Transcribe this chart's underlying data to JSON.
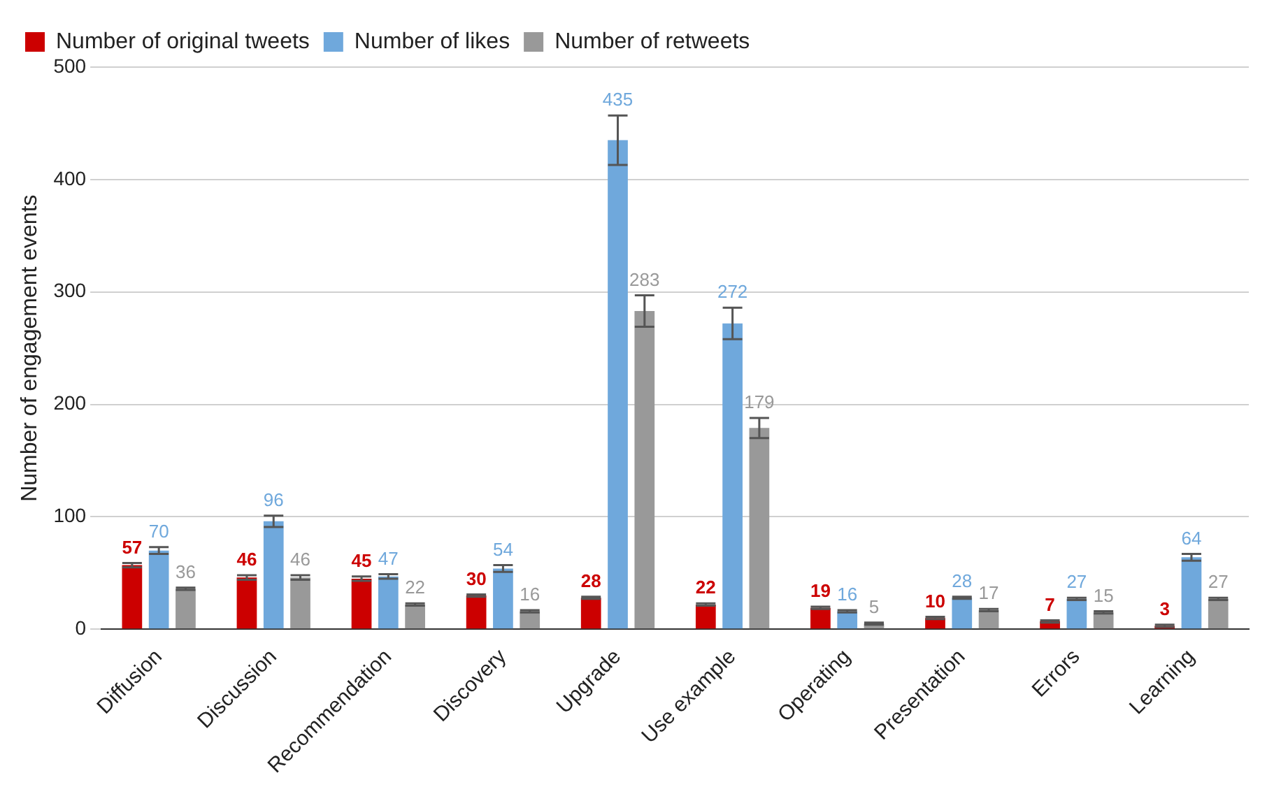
{
  "chart_data": {
    "type": "bar",
    "ylabel": "Number of engagement events",
    "categories": [
      "Diffusion",
      "Discussion",
      "Recommendation",
      "Discovery",
      "Upgrade",
      "Use example",
      "Operating",
      "Presentation",
      "Errors",
      "Learning"
    ],
    "series": [
      {
        "name": "Number of original tweets",
        "color": "#cc0000",
        "values": [
          57,
          46,
          45,
          30,
          28,
          22,
          19,
          10,
          7,
          3
        ],
        "errors": [
          2,
          2,
          2,
          1,
          1,
          1,
          1,
          1,
          1,
          1
        ]
      },
      {
        "name": "Number of likes",
        "color": "#6fa8dc",
        "values": [
          70,
          96,
          47,
          54,
          435,
          272,
          16,
          28,
          27,
          64
        ],
        "errors": [
          3,
          5,
          2,
          3,
          22,
          14,
          1,
          1,
          1,
          3
        ]
      },
      {
        "name": "Number of retweets",
        "color": "#999999",
        "values": [
          36,
          46,
          22,
          16,
          283,
          179,
          5,
          17,
          15,
          27
        ],
        "errors": [
          1,
          2,
          1,
          1,
          14,
          9,
          1,
          1,
          1,
          1
        ]
      }
    ],
    "ylim": [
      0,
      500
    ],
    "yticks": [
      0,
      100,
      200,
      300,
      400,
      500
    ],
    "grid": "y",
    "legend": "top left",
    "data_labels": true
  }
}
